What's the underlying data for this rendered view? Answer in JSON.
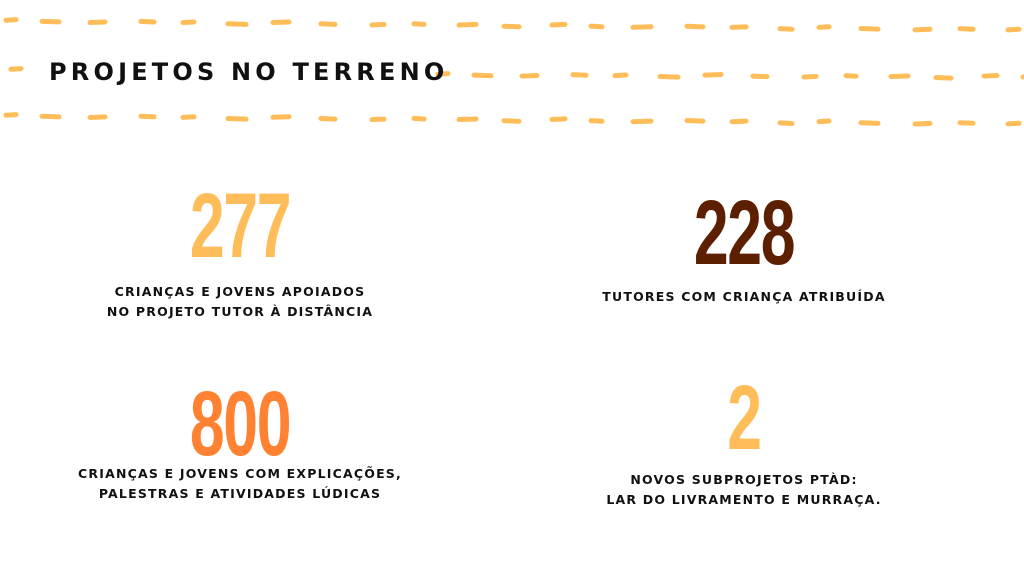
{
  "header": {
    "title": "PROJETOS NO TERRENO"
  },
  "colors": {
    "dash": "#ffbd59",
    "yellow": "#ffbd59",
    "brown": "#5c1f00",
    "orange": "#ff8232"
  },
  "stats": [
    {
      "value": "277",
      "label_lines": [
        "CRIANÇAS E JOVENS APOIADOS",
        "NO PROJETO TUTOR À DISTÂNCIA"
      ]
    },
    {
      "value": "228",
      "label_lines": [
        "TUTORES COM CRIANÇA ATRIBUÍDA"
      ]
    },
    {
      "value": "800",
      "label_lines": [
        "CRIANÇAS E JOVENS COM EXPLICAÇÕES,",
        "PALESTRAS E ATIVIDADES LÚDICAS"
      ]
    },
    {
      "value": "2",
      "label_lines": [
        "NOVOS SUBPROJETOS PTÀD:",
        "LAR DO LIVRAMENTO E MURRAÇA."
      ]
    }
  ]
}
